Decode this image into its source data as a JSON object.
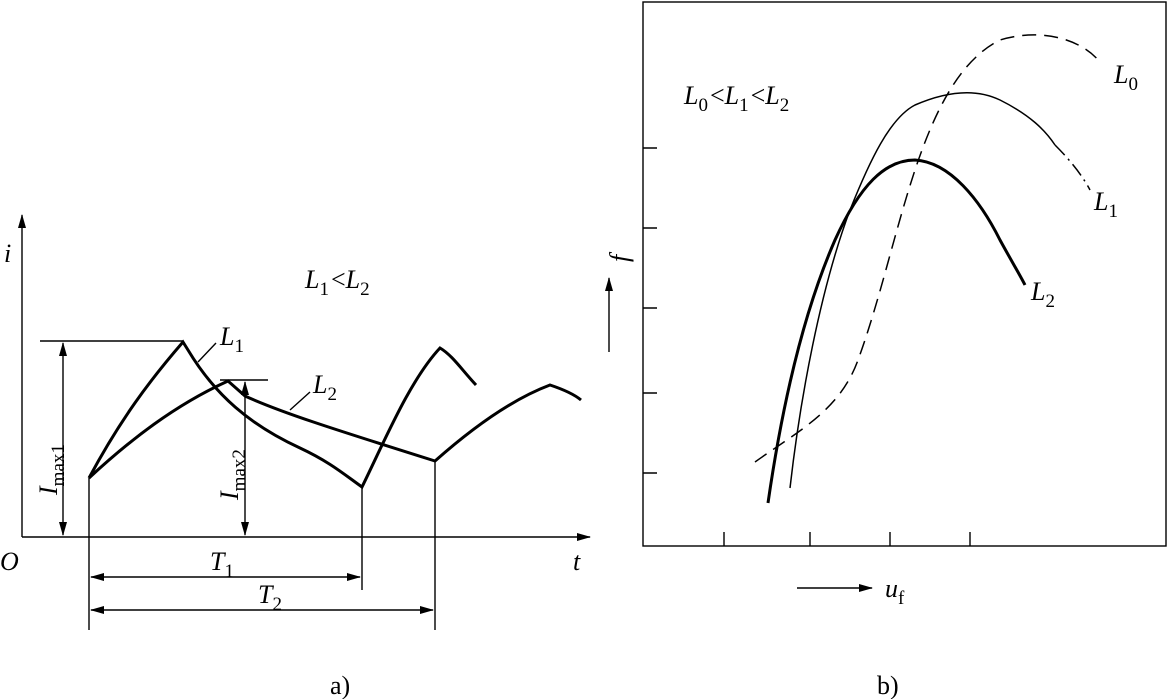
{
  "panel_a": {
    "y_axis_label": "i",
    "origin": "O",
    "x_axis_label": "t",
    "relation": {
      "terms": [
        {
          "base": "L",
          "sub": "1"
        },
        {
          "base": "L",
          "sub": "2"
        }
      ],
      "ops": [
        "<"
      ]
    },
    "curve_labels": [
      {
        "base": "L",
        "sub": "1"
      },
      {
        "base": "L",
        "sub": "2"
      }
    ],
    "peak_labels": [
      {
        "base": "I",
        "sub": "max1"
      },
      {
        "base": "I",
        "sub": "max2"
      }
    ],
    "period_labels": [
      {
        "base": "T",
        "sub": "1"
      },
      {
        "base": "T",
        "sub": "2"
      }
    ],
    "caption": "a)"
  },
  "panel_b": {
    "y_axis_label": "f",
    "x_axis_label": {
      "base": "u",
      "sub": "f"
    },
    "relation": {
      "terms": [
        {
          "base": "L",
          "sub": "0"
        },
        {
          "base": "L",
          "sub": "1"
        },
        {
          "base": "L",
          "sub": "2"
        }
      ],
      "ops": [
        "<",
        "<"
      ]
    },
    "curve_labels": [
      {
        "base": "L",
        "sub": "0"
      },
      {
        "base": "L",
        "sub": "1"
      },
      {
        "base": "L",
        "sub": "2"
      }
    ],
    "caption": "b)"
  }
}
